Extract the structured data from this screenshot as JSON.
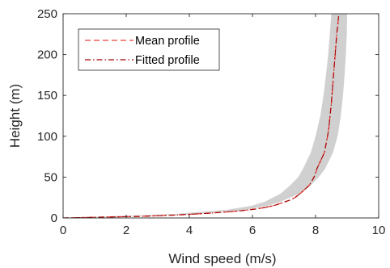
{
  "chart_data": {
    "type": "line",
    "title": "",
    "xlabel": "Wind speed (m/s)",
    "ylabel": "Height (m)",
    "xlim": [
      0,
      10
    ],
    "ylim": [
      0,
      250
    ],
    "xticks": [
      "0",
      "2",
      "4",
      "6",
      "8",
      "10"
    ],
    "yticks": [
      "0",
      "50",
      "100",
      "150",
      "200",
      "250"
    ],
    "grid": false,
    "legend_position": "top-left",
    "band": {
      "color": "#d0d0d0",
      "height": [
        0,
        5,
        10,
        15,
        20,
        30,
        40,
        50,
        60,
        80,
        100,
        125,
        150,
        175,
        200,
        225,
        250
      ],
      "lower": [
        0,
        3.6,
        5.2,
        6.0,
        6.4,
        6.9,
        7.2,
        7.45,
        7.6,
        7.85,
        8.0,
        8.15,
        8.25,
        8.33,
        8.4,
        8.45,
        8.5
      ],
      "upper": [
        0.3,
        4.2,
        5.8,
        6.5,
        6.9,
        7.5,
        7.85,
        8.1,
        8.3,
        8.55,
        8.7,
        8.8,
        8.87,
        8.92,
        8.96,
        8.99,
        9.0
      ]
    },
    "series": [
      {
        "name": "Mean profile",
        "style": "dashed",
        "color": "#e8413a",
        "x": [
          0,
          1.2,
          2.5,
          3.5,
          4.3,
          4.9,
          5.4,
          5.8,
          6.1,
          6.35,
          6.55,
          6.75,
          6.9,
          7.05,
          7.2,
          7.35,
          7.45,
          7.55,
          7.63,
          7.72,
          7.8,
          7.88,
          7.95,
          8.0,
          8.04,
          8.1,
          8.16,
          8.22,
          8.28,
          8.33,
          8.38,
          8.42,
          8.46,
          8.5,
          8.53,
          8.56,
          8.59,
          8.62,
          8.65,
          8.67,
          8.7,
          8.73
        ],
        "y": [
          0,
          1,
          2,
          3.5,
          5,
          6.5,
          8,
          9.5,
          11,
          12.5,
          14,
          16,
          18,
          20,
          22,
          25,
          28,
          31,
          34,
          37,
          40,
          45,
          50,
          55,
          60,
          65,
          70,
          75,
          80,
          90,
          100,
          110,
          125,
          140,
          155,
          170,
          185,
          200,
          215,
          225,
          235,
          247
        ]
      },
      {
        "name": "Fitted profile",
        "style": "dashdot",
        "color": "#a40000",
        "x": [
          0,
          1.2,
          2.5,
          3.5,
          4.3,
          4.9,
          5.4,
          5.8,
          6.1,
          6.35,
          6.55,
          6.75,
          6.9,
          7.05,
          7.2,
          7.35,
          7.45,
          7.55,
          7.63,
          7.72,
          7.8,
          7.88,
          7.95,
          8.0,
          8.04,
          8.1,
          8.16,
          8.22,
          8.28,
          8.33,
          8.38,
          8.42,
          8.46,
          8.5,
          8.53,
          8.56,
          8.59,
          8.62,
          8.65,
          8.67,
          8.7,
          8.73
        ],
        "y": [
          0,
          1,
          2,
          3.5,
          5,
          6.5,
          8,
          9.5,
          11,
          12.5,
          14,
          16,
          18,
          20,
          22,
          25,
          28,
          31,
          34,
          37,
          40,
          45,
          50,
          55,
          60,
          65,
          70,
          75,
          80,
          90,
          100,
          110,
          125,
          140,
          155,
          170,
          185,
          200,
          215,
          225,
          235,
          247
        ]
      }
    ]
  }
}
